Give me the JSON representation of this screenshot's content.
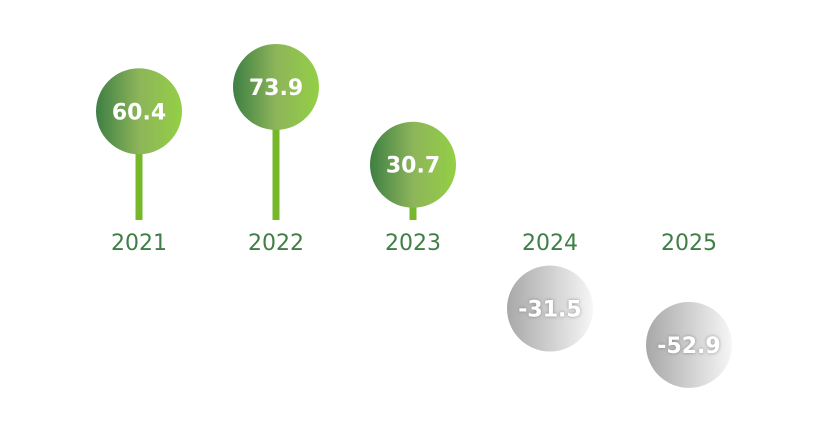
{
  "chart_data": {
    "type": "lollipop",
    "categories": [
      "2021",
      "2022",
      "2023",
      "2024",
      "2025"
    ],
    "values": [
      60.4,
      73.9,
      30.7,
      -31.5,
      -52.9
    ],
    "value_labels": [
      "60.4",
      "73.9",
      "30.7",
      "-31.5",
      "-52.9"
    ],
    "title": "",
    "xlabel": "",
    "ylabel": "",
    "grid": false,
    "colors": {
      "positive_start": "#3e7f44",
      "positive_mid": "#8db55a",
      "positive_end": "#94cf45",
      "stem": "#76b82a",
      "negative_start": "#a8a8a8",
      "negative_end": "#f4f4f4",
      "year_label": "#3f7f45"
    }
  }
}
